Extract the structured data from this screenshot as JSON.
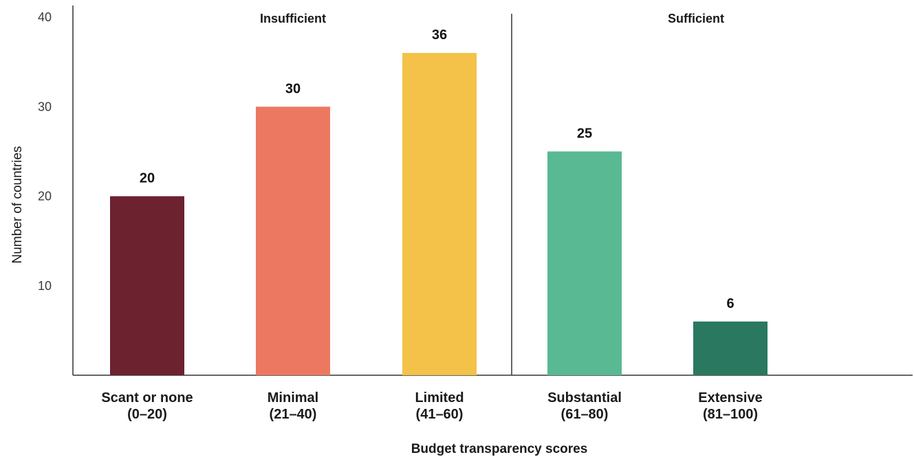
{
  "chart_data": {
    "type": "bar",
    "categories": [
      "Scant or none",
      "Minimal",
      "Limited",
      "Substantial",
      "Extensive"
    ],
    "category_ranges": [
      "(0–20)",
      "(21–40)",
      "(41–60)",
      "(61–80)",
      "(81–100)"
    ],
    "values": [
      20,
      30,
      36,
      25,
      6
    ],
    "data_labels": [
      "20",
      "30",
      "36",
      "25",
      "6"
    ],
    "bar_colors": [
      "#6d2230",
      "#ed7862",
      "#f4c248",
      "#58b992",
      "#2a7860"
    ],
    "xlabel": "Budget transparency scores",
    "ylabel": "Number of countries",
    "ylim": [
      0,
      40
    ],
    "yticks": [
      10,
      20,
      30,
      40
    ],
    "groups": [
      {
        "label": "Insufficient",
        "categories": [
          "Scant or none",
          "Minimal",
          "Limited"
        ]
      },
      {
        "label": "Sufficient",
        "categories": [
          "Substantial",
          "Extensive"
        ]
      }
    ],
    "grid": false
  }
}
